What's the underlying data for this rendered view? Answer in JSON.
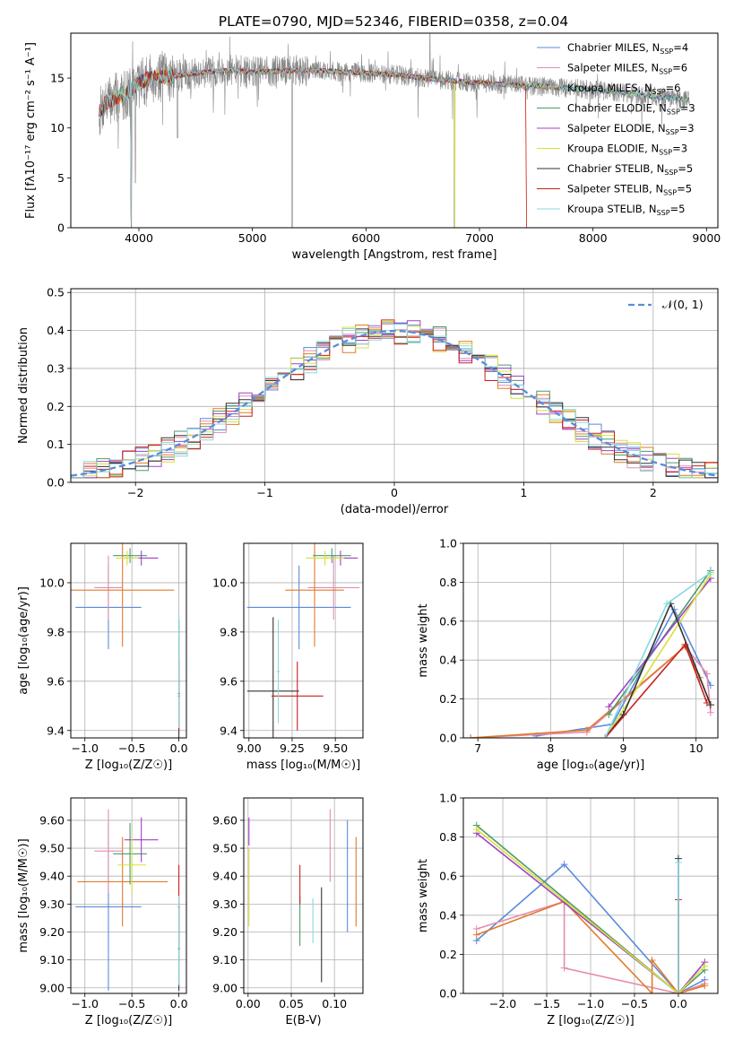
{
  "figure_title": "PLATE=0790, MJD=52346, FIBERID=0358, z=0.04",
  "colors": {
    "Chabrier MILES": "#5b8bdc",
    "Salpeter MILES": "#e58bb0",
    "Kroupa MILES": "#e07b2b",
    "Chabrier ELODIE": "#4f9a6b",
    "Salpeter ELODIE": "#a040c8",
    "Kroupa ELODIE": "#d8e03a",
    "Chabrier STELIB": "#333333",
    "Salpeter STELIB": "#c82020",
    "Kroupa STELIB": "#88d8e0",
    "gauss": "#5b8bdc",
    "data": "#888888"
  },
  "chart_data": [
    {
      "id": "spectrum",
      "type": "line",
      "xlabel": "wavelength [Angstrom, rest frame]",
      "ylabel": "Flux [fλ10⁻¹⁷ erg cm⁻² s⁻¹ A⁻¹]",
      "xlim": [
        3400,
        9100
      ],
      "ylim": [
        0,
        19.5
      ],
      "xticks": [
        4000,
        5000,
        6000,
        7000,
        8000,
        9000
      ],
      "yticks": [
        0,
        5,
        10,
        15
      ],
      "grid": false,
      "legend_position": "top-right",
      "legend": [
        {
          "model": "Chabrier MILES",
          "nssp": "4"
        },
        {
          "model": "Salpeter MILES",
          "nssp": "6"
        },
        {
          "model": "Kroupa MILES",
          "nssp": "6"
        },
        {
          "model": "Chabrier ELODIE",
          "nssp": "3"
        },
        {
          "model": "Salpeter ELODIE",
          "nssp": "3"
        },
        {
          "model": "Kroupa ELODIE",
          "nssp": "3"
        },
        {
          "model": "Chabrier STELIB",
          "nssp": "5"
        },
        {
          "model": "Salpeter STELIB",
          "nssp": "5"
        },
        {
          "model": "Kroupa STELIB",
          "nssp": "5"
        }
      ],
      "continuum_x": [
        3650,
        3700,
        3800,
        3900,
        4000,
        4100,
        4300,
        4500,
        4800,
        5000,
        5200,
        5500,
        5800,
        6000,
        6300,
        6500,
        6700,
        7000,
        7300,
        7500,
        7800,
        8000,
        8300,
        8500,
        8700,
        8850
      ],
      "continuum_y": [
        11.5,
        12.5,
        13.0,
        13.5,
        14.5,
        15.0,
        15.2,
        15.5,
        15.8,
        15.6,
        15.7,
        15.8,
        15.6,
        15.5,
        15.3,
        15.0,
        14.8,
        14.5,
        14.3,
        14.2,
        14.0,
        13.8,
        13.5,
        13.2,
        13.0,
        12.8
      ],
      "data_dips": [
        {
          "x": 3934,
          "y": 0
        },
        {
          "x": 3969,
          "y": 4.5
        },
        {
          "x": 4340,
          "y": 9.0
        },
        {
          "x": 5350,
          "y": 0
        },
        {
          "x": 6563,
          "y": 19.5
        },
        {
          "x": 6780,
          "y": 0
        }
      ],
      "model_cutoff": {
        "models": [
          "Kroupa MILES",
          "Salpeter STELIB"
        ],
        "x": 7410
      }
    },
    {
      "id": "residuals",
      "type": "line",
      "xlabel": "(data-model)/error",
      "ylabel": "Normed distribution",
      "xlim": [
        -2.5,
        2.5
      ],
      "ylim": [
        0,
        0.51
      ],
      "xticks": [
        -2,
        -1,
        0,
        1,
        2
      ],
      "yticks": [
        0.0,
        0.1,
        0.2,
        0.3,
        0.4,
        0.5
      ],
      "grid": true,
      "legend_position": "top-right",
      "legend": [
        "𝒩(0, 1)"
      ],
      "bin_width": 0.1
    },
    {
      "id": "age-vs-Z",
      "type": "scatter",
      "xlabel": "Z [log₁₀(Z/Z☉)]",
      "ylabel": "age  [log₁₀(age/yr)]",
      "xlim": [
        -1.15,
        0.08
      ],
      "ylim": [
        9.37,
        10.16
      ],
      "xticks": [
        -1.0,
        -0.5,
        0.0
      ],
      "yticks": [
        9.4,
        9.6,
        9.8,
        10.0
      ],
      "grid": true,
      "points": [
        {
          "model": "Chabrier MILES",
          "x": -0.75,
          "y": 9.9,
          "xerr": 0.35,
          "yerr": 0.17
        },
        {
          "model": "Salpeter MILES",
          "x": -0.75,
          "y": 9.98,
          "xerr": 0.15,
          "yerr": 0.13
        },
        {
          "model": "Kroupa MILES",
          "x": -0.6,
          "y": 9.97,
          "xerr": 0.55,
          "yerr": 0.23
        },
        {
          "model": "Chabrier ELODIE",
          "x": -0.52,
          "y": 10.11,
          "xerr": 0.18,
          "yerr": 0.03
        },
        {
          "model": "Salpeter ELODIE",
          "x": -0.4,
          "y": 10.1,
          "xerr": 0.18,
          "yerr": 0.03
        },
        {
          "model": "Kroupa ELODIE",
          "x": -0.55,
          "y": 10.1,
          "xerr": 0.12,
          "yerr": 0.03
        },
        {
          "model": "Chabrier STELIB",
          "x": 0.0,
          "y": 9.55,
          "xerr": 0.01,
          "yerr": 0.3
        },
        {
          "model": "Salpeter STELIB",
          "x": 0.0,
          "y": 9.54,
          "xerr": 0.01,
          "yerr": 0.14
        },
        {
          "model": "Kroupa STELIB",
          "x": 0.0,
          "y": 9.64,
          "xerr": 0.01,
          "yerr": 0.23
        }
      ]
    },
    {
      "id": "age-vs-mass",
      "type": "scatter",
      "xlabel": "mass [log₁₀(M/M☉)]",
      "ylabel": "",
      "xlim": [
        8.97,
        9.66
      ],
      "ylim": [
        9.37,
        10.16
      ],
      "xticks": [
        9.0,
        9.25,
        9.5
      ],
      "yticks": [
        9.4,
        9.6,
        9.8,
        10.0
      ],
      "grid": true,
      "points": [
        {
          "model": "Chabrier MILES",
          "x": 9.29,
          "y": 9.9,
          "xerr": 0.3,
          "yerr": 0.17
        },
        {
          "model": "Salpeter MILES",
          "x": 9.49,
          "y": 9.98,
          "xerr": 0.15,
          "yerr": 0.13
        },
        {
          "model": "Kroupa MILES",
          "x": 9.38,
          "y": 9.97,
          "xerr": 0.17,
          "yerr": 0.23
        },
        {
          "model": "Chabrier ELODIE",
          "x": 9.48,
          "y": 10.11,
          "xerr": 0.11,
          "yerr": 0.03
        },
        {
          "model": "Salpeter ELODIE",
          "x": 9.53,
          "y": 10.1,
          "xerr": 0.1,
          "yerr": 0.03
        },
        {
          "model": "Kroupa ELODIE",
          "x": 9.44,
          "y": 10.1,
          "xerr": 0.11,
          "yerr": 0.03
        },
        {
          "model": "Chabrier STELIB",
          "x": 9.14,
          "y": 9.56,
          "xerr": 0.15,
          "yerr": 0.3
        },
        {
          "model": "Salpeter STELIB",
          "x": 9.28,
          "y": 9.54,
          "xerr": 0.15,
          "yerr": 0.14
        },
        {
          "model": "Kroupa STELIB",
          "x": 9.17,
          "y": 9.64,
          "xerr": 0.01,
          "yerr": 0.21
        }
      ]
    },
    {
      "id": "weight-vs-age",
      "type": "line",
      "xlabel": "age  [log₁₀(age/yr)]",
      "ylabel": "mass weight",
      "xlim": [
        6.8,
        10.3
      ],
      "ylim": [
        0,
        1.0
      ],
      "xticks": [
        7,
        8,
        9,
        10
      ],
      "yticks": [
        0.0,
        0.2,
        0.4,
        0.6,
        0.8,
        1.0
      ],
      "grid": true,
      "series": [
        {
          "model": "Chabrier MILES",
          "x": [
            7.8,
            8.85,
            9.7,
            10.2
          ],
          "y": [
            0.01,
            0.07,
            0.66,
            0.27
          ]
        },
        {
          "model": "Salpeter MILES",
          "x": [
            6.9,
            8.5,
            9.85,
            10.15,
            10.2
          ],
          "y": [
            0.0,
            0.03,
            0.47,
            0.33,
            0.13
          ]
        },
        {
          "model": "Kroupa MILES",
          "x": [
            6.9,
            8.5,
            9.85,
            10.05,
            10.2
          ],
          "y": [
            0.0,
            0.04,
            0.47,
            0.31,
            0.17
          ]
        },
        {
          "model": "Chabrier ELODIE",
          "x": [
            8.8,
            10.2
          ],
          "y": [
            0.12,
            0.86
          ]
        },
        {
          "model": "Salpeter ELODIE",
          "x": [
            8.8,
            10.2
          ],
          "y": [
            0.16,
            0.82
          ]
        },
        {
          "model": "Kroupa ELODIE",
          "x": [
            8.75,
            10.2
          ],
          "y": [
            0.0,
            0.84
          ]
        },
        {
          "model": "Chabrier STELIB",
          "x": [
            8.75,
            9.0,
            9.65,
            10.2
          ],
          "y": [
            0.0,
            0.12,
            0.69,
            0.17
          ]
        },
        {
          "model": "Salpeter STELIB",
          "x": [
            8.75,
            9.85,
            10.15
          ],
          "y": [
            0.0,
            0.48,
            0.18
          ]
        },
        {
          "model": "Kroupa STELIB",
          "x": [
            8.75,
            9.6,
            10.2
          ],
          "y": [
            0.0,
            0.69,
            0.85
          ]
        }
      ]
    },
    {
      "id": "mass-vs-Z",
      "type": "scatter",
      "xlabel": "Z [log₁₀(Z/Z☉)]",
      "ylabel": "mass [log₁₀(M/M☉)]",
      "xlim": [
        -1.15,
        0.08
      ],
      "ylim": [
        8.98,
        9.68
      ],
      "xticks": [
        -1.0,
        -0.5,
        0.0
      ],
      "yticks": [
        9.0,
        9.1,
        9.2,
        9.3,
        9.4,
        9.5,
        9.6
      ],
      "grid": true,
      "points": [
        {
          "model": "Chabrier MILES",
          "x": -0.75,
          "y": 9.29,
          "xerr": 0.35,
          "yerr": 0.3
        },
        {
          "model": "Salpeter MILES",
          "x": -0.75,
          "y": 9.49,
          "xerr": 0.15,
          "yerr": 0.15
        },
        {
          "model": "Kroupa MILES",
          "x": -0.6,
          "y": 9.38,
          "xerr": 0.48,
          "yerr": 0.16
        },
        {
          "model": "Chabrier ELODIE",
          "x": -0.52,
          "y": 9.48,
          "xerr": 0.18,
          "yerr": 0.11
        },
        {
          "model": "Salpeter ELODIE",
          "x": -0.4,
          "y": 9.53,
          "xerr": 0.18,
          "yerr": 0.08
        },
        {
          "model": "Kroupa ELODIE",
          "x": -0.5,
          "y": 9.44,
          "xerr": 0.15,
          "yerr": 0.1
        },
        {
          "model": "Chabrier STELIB",
          "x": 0.0,
          "y": 9.14,
          "xerr": 0.01,
          "yerr": 0.15
        },
        {
          "model": "Salpeter STELIB",
          "x": 0.0,
          "y": 9.29,
          "xerr": 0.01,
          "yerr": 0.15
        },
        {
          "model": "Kroupa STELIB",
          "x": 0.0,
          "y": 9.17,
          "xerr": 0.01,
          "yerr": 0.16
        }
      ]
    },
    {
      "id": "mass-vs-EBV",
      "type": "scatter",
      "xlabel": "E(B-V)",
      "ylabel": "",
      "xlim": [
        -0.005,
        0.133
      ],
      "ylim": [
        8.98,
        9.68
      ],
      "xticks": [
        0.0,
        0.05,
        0.1
      ],
      "yticks": [
        9.0,
        9.1,
        9.2,
        9.3,
        9.4,
        9.5,
        9.6
      ],
      "grid": true,
      "points": [
        {
          "model": "Chabrier MILES",
          "x": 0.115,
          "y": 9.4,
          "xerr": 0.0,
          "yerr": 0.2
        },
        {
          "model": "Salpeter MILES",
          "x": 0.095,
          "y": 9.51,
          "xerr": 0.0,
          "yerr": 0.13
        },
        {
          "model": "Kroupa MILES",
          "x": 0.125,
          "y": 9.38,
          "xerr": 0.0,
          "yerr": 0.16
        },
        {
          "model": "Chabrier ELODIE",
          "x": 0.06,
          "y": 9.24,
          "xerr": 0.0,
          "yerr": 0.09
        },
        {
          "model": "Salpeter ELODIE",
          "x": 0.001,
          "y": 9.56,
          "xerr": 0.0,
          "yerr": 0.05
        },
        {
          "model": "Kroupa ELODIE",
          "x": 0.001,
          "y": 9.36,
          "xerr": 0.0,
          "yerr": 0.14
        },
        {
          "model": "Chabrier STELIB",
          "x": 0.085,
          "y": 9.19,
          "xerr": 0.0,
          "yerr": 0.17
        },
        {
          "model": "Salpeter STELIB",
          "x": 0.06,
          "y": 9.37,
          "xerr": 0.0,
          "yerr": 0.07
        },
        {
          "model": "Kroupa STELIB",
          "x": 0.075,
          "y": 9.24,
          "xerr": 0.0,
          "yerr": 0.08
        }
      ]
    },
    {
      "id": "weight-vs-Z",
      "type": "line",
      "xlabel": "Z [log₁₀(Z/Z☉)]",
      "ylabel": "mass weight",
      "xlim": [
        -2.45,
        0.45
      ],
      "ylim": [
        0,
        1.0
      ],
      "xticks": [
        -2.0,
        -1.5,
        -1.0,
        -0.5,
        0.0
      ],
      "yticks": [
        0.0,
        0.2,
        0.4,
        0.6,
        0.8,
        1.0
      ],
      "grid": true,
      "series": [
        {
          "model": "Chabrier MILES",
          "x": [
            -2.3,
            -1.3,
            0.0,
            0.3
          ],
          "y": [
            0.27,
            0.66,
            0.0,
            0.07
          ]
        },
        {
          "model": "Salpeter MILES",
          "x": [
            -2.3,
            -1.3,
            -1.3,
            0.0,
            0.3
          ],
          "y": [
            0.33,
            0.47,
            0.13,
            0.0,
            0.05
          ]
        },
        {
          "model": "Kroupa MILES",
          "x": [
            -2.3,
            -1.3,
            -0.3,
            -0.3,
            0.0,
            0.3
          ],
          "y": [
            0.3,
            0.47,
            0.0,
            0.17,
            0.0,
            0.04
          ]
        },
        {
          "model": "Chabrier ELODIE",
          "x": [
            -2.3,
            0.0,
            0.3
          ],
          "y": [
            0.86,
            0.0,
            0.12
          ]
        },
        {
          "model": "Salpeter ELODIE",
          "x": [
            -2.3,
            0.0,
            0.3
          ],
          "y": [
            0.82,
            0.0,
            0.16
          ]
        },
        {
          "model": "Kroupa ELODIE",
          "x": [
            -2.3,
            0.0,
            0.3
          ],
          "y": [
            0.84,
            0.0,
            0.14
          ]
        },
        {
          "model": "Chabrier STELIB",
          "x": [
            0.0,
            0.0
          ],
          "y": [
            0.0,
            0.69
          ]
        },
        {
          "model": "Salpeter STELIB",
          "x": [
            0.0,
            0.0
          ],
          "y": [
            0.0,
            0.48
          ]
        },
        {
          "model": "Kroupa STELIB",
          "x": [
            0.0,
            0.0
          ],
          "y": [
            0.0,
            0.67
          ]
        }
      ]
    }
  ]
}
